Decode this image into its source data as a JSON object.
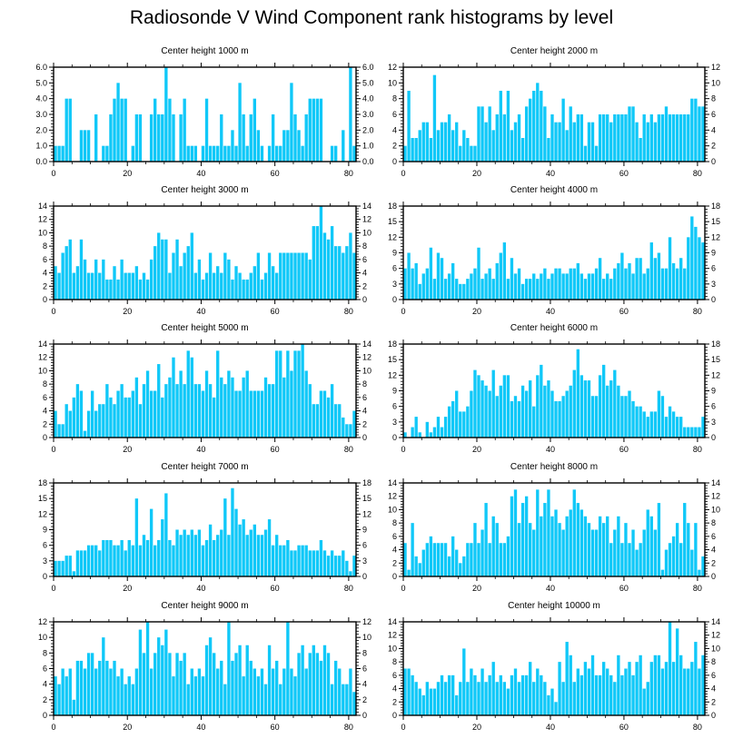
{
  "title": "Radiosonde V Wind Component rank histograms by level",
  "chart_data": [
    {
      "type": "bar",
      "title": "Center height 1000 m",
      "xlim": [
        0,
        82
      ],
      "ylim": [
        0,
        6
      ],
      "yticks": [
        0,
        1,
        2,
        3,
        4,
        5,
        6
      ],
      "ytick_labels": [
        "0.0",
        "1.0",
        "2.0",
        "3.0",
        "4.0",
        "5.0",
        "6.0"
      ],
      "xticks": [
        0,
        20,
        40,
        60,
        80
      ],
      "values": [
        1,
        1,
        1,
        4,
        4,
        0,
        0,
        2,
        2,
        2,
        0,
        3,
        0,
        1,
        1,
        3,
        4,
        5,
        4,
        4,
        0,
        1,
        3,
        3,
        0,
        0,
        3,
        4,
        3,
        3,
        6,
        4,
        3,
        0,
        3,
        4,
        1,
        1,
        1,
        0,
        1,
        4,
        1,
        1,
        1,
        3,
        1,
        1,
        2,
        1,
        5,
        3,
        1,
        3,
        4,
        2,
        1,
        0,
        1,
        3,
        1,
        1,
        2,
        2,
        5,
        3,
        2,
        1,
        3,
        4,
        4,
        4,
        4,
        0,
        0,
        1,
        1,
        0,
        2,
        0,
        6,
        1
      ]
    },
    {
      "type": "bar",
      "title": "Center height 2000 m",
      "xlim": [
        0,
        82
      ],
      "ylim": [
        0,
        12
      ],
      "yticks": [
        0,
        2,
        4,
        6,
        8,
        10,
        12
      ],
      "ytick_labels": [
        "0",
        "2",
        "4",
        "6",
        "8",
        "10",
        "12"
      ],
      "xticks": [
        0,
        20,
        40,
        60,
        80
      ],
      "values": [
        2,
        9,
        3,
        3,
        4,
        5,
        5,
        3,
        11,
        4,
        5,
        5,
        6,
        4,
        5,
        2,
        4,
        3,
        2,
        2,
        7,
        7,
        5,
        7,
        4,
        6,
        9,
        6,
        9,
        4,
        5,
        6,
        3,
        7,
        8,
        9,
        10,
        9,
        7,
        3,
        6,
        5,
        5,
        8,
        4,
        7,
        5,
        6,
        6,
        2,
        5,
        5,
        2,
        6,
        6,
        6,
        5,
        6,
        6,
        6,
        6,
        7,
        7,
        5,
        3,
        6,
        5,
        6,
        5,
        6,
        6,
        7,
        6,
        6,
        6,
        6,
        6,
        6,
        8,
        8,
        7,
        7
      ]
    },
    {
      "type": "bar",
      "title": "Center height 3000 m",
      "xlim": [
        0,
        82
      ],
      "ylim": [
        0,
        14
      ],
      "yticks": [
        0,
        2,
        4,
        6,
        8,
        10,
        12,
        14
      ],
      "ytick_labels": [
        "0",
        "2",
        "4",
        "6",
        "8",
        "10",
        "12",
        "14"
      ],
      "xticks": [
        0,
        20,
        40,
        60,
        80
      ],
      "values": [
        5,
        4,
        7,
        8,
        9,
        4,
        5,
        9,
        6,
        4,
        4,
        6,
        4,
        6,
        3,
        3,
        5,
        3,
        6,
        4,
        4,
        4,
        5,
        3,
        4,
        3,
        6,
        8,
        10,
        9,
        9,
        4,
        7,
        9,
        5,
        7,
        8,
        10,
        4,
        6,
        3,
        4,
        7,
        4,
        5,
        4,
        7,
        6,
        3,
        5,
        4,
        3,
        3,
        4,
        5,
        7,
        3,
        4,
        7,
        5,
        4,
        7,
        7,
        7,
        7,
        7,
        7,
        7,
        7,
        6,
        11,
        11,
        14,
        10,
        9,
        11,
        8,
        8,
        7,
        8,
        10,
        7
      ]
    },
    {
      "type": "bar",
      "title": "Center height 4000 m",
      "xlim": [
        0,
        82
      ],
      "ylim": [
        0,
        18
      ],
      "yticks": [
        0,
        3,
        6,
        9,
        12,
        15,
        18
      ],
      "ytick_labels": [
        "0",
        "3",
        "6",
        "9",
        "12",
        "15",
        "18"
      ],
      "xticks": [
        0,
        20,
        40,
        60,
        80
      ],
      "values": [
        6,
        9,
        6,
        7,
        3,
        5,
        6,
        10,
        4,
        9,
        8,
        4,
        5,
        7,
        4,
        3,
        3,
        4,
        5,
        6,
        10,
        4,
        5,
        6,
        4,
        7,
        9,
        11,
        4,
        8,
        5,
        6,
        3,
        4,
        4,
        5,
        4,
        5,
        6,
        4,
        5,
        6,
        6,
        5,
        5,
        6,
        6,
        7,
        5,
        4,
        5,
        5,
        6,
        8,
        4,
        5,
        4,
        6,
        7,
        9,
        6,
        7,
        5,
        8,
        8,
        5,
        6,
        11,
        8,
        9,
        6,
        6,
        12,
        7,
        6,
        8,
        6,
        12,
        16,
        14,
        12,
        11
      ]
    },
    {
      "type": "bar",
      "title": "Center height 5000 m",
      "xlim": [
        0,
        82
      ],
      "ylim": [
        0,
        14
      ],
      "yticks": [
        0,
        2,
        4,
        6,
        8,
        10,
        12,
        14
      ],
      "ytick_labels": [
        "0",
        "2",
        "4",
        "6",
        "8",
        "10",
        "12",
        "14"
      ],
      "xticks": [
        0,
        20,
        40,
        60,
        80
      ],
      "values": [
        4,
        2,
        2,
        5,
        4,
        6,
        8,
        7,
        1,
        4,
        7,
        4,
        5,
        5,
        8,
        6,
        5,
        7,
        8,
        6,
        6,
        7,
        9,
        5,
        8,
        10,
        7,
        7,
        11,
        6,
        8,
        9,
        12,
        8,
        10,
        8,
        13,
        12,
        8,
        8,
        7,
        10,
        8,
        6,
        13,
        9,
        8,
        10,
        9,
        7,
        7,
        9,
        10,
        7,
        7,
        7,
        7,
        9,
        8,
        8,
        13,
        13,
        9,
        13,
        10,
        13,
        13,
        14,
        10,
        8,
        5,
        5,
        7,
        7,
        6,
        8,
        5,
        5,
        3,
        2,
        2,
        4
      ]
    },
    {
      "type": "bar",
      "title": "Center height 6000 m",
      "xlim": [
        0,
        82
      ],
      "ylim": [
        0,
        18
      ],
      "yticks": [
        0,
        3,
        6,
        9,
        12,
        15,
        18
      ],
      "ytick_labels": [
        "0",
        "3",
        "6",
        "9",
        "12",
        "15",
        "18"
      ],
      "xticks": [
        0,
        20,
        40,
        60,
        80
      ],
      "values": [
        1,
        0,
        2,
        4,
        1,
        0,
        3,
        1,
        2,
        4,
        2,
        4,
        6,
        7,
        9,
        5,
        5,
        6,
        9,
        13,
        12,
        11,
        10,
        9,
        13,
        8,
        10,
        12,
        12,
        7,
        8,
        7,
        10,
        9,
        11,
        6,
        12,
        14,
        10,
        11,
        9,
        7,
        7,
        8,
        9,
        10,
        13,
        17,
        12,
        11,
        11,
        8,
        8,
        12,
        14,
        10,
        11,
        13,
        10,
        8,
        8,
        9,
        7,
        6,
        6,
        5,
        4,
        5,
        5,
        9,
        8,
        4,
        6,
        5,
        4,
        4,
        2,
        2,
        2,
        2,
        2,
        4
      ]
    },
    {
      "type": "bar",
      "title": "Center height 7000 m",
      "xlim": [
        0,
        82
      ],
      "ylim": [
        0,
        18
      ],
      "yticks": [
        0,
        3,
        6,
        9,
        12,
        15,
        18
      ],
      "ytick_labels": [
        "0",
        "3",
        "6",
        "9",
        "12",
        "15",
        "18"
      ],
      "xticks": [
        0,
        20,
        40,
        60,
        80
      ],
      "values": [
        3,
        3,
        3,
        4,
        4,
        1,
        5,
        5,
        5,
        6,
        6,
        6,
        5,
        7,
        7,
        7,
        6,
        6,
        7,
        5,
        7,
        6,
        15,
        6,
        8,
        7,
        13,
        6,
        7,
        11,
        16,
        7,
        6,
        9,
        8,
        9,
        8,
        9,
        8,
        9,
        6,
        7,
        10,
        7,
        8,
        9,
        15,
        8,
        17,
        13,
        10,
        11,
        8,
        9,
        10,
        8,
        8,
        9,
        11,
        6,
        8,
        6,
        6,
        7,
        5,
        5,
        6,
        6,
        6,
        5,
        5,
        5,
        7,
        5,
        4,
        5,
        4,
        4,
        5,
        3,
        1,
        4
      ]
    },
    {
      "type": "bar",
      "title": "Center height 8000 m",
      "xlim": [
        0,
        82
      ],
      "ylim": [
        0,
        14
      ],
      "yticks": [
        0,
        2,
        4,
        6,
        8,
        10,
        12,
        14
      ],
      "ytick_labels": [
        "0",
        "2",
        "4",
        "6",
        "8",
        "10",
        "12",
        "14"
      ],
      "xticks": [
        0,
        20,
        40,
        60,
        80
      ],
      "values": [
        5,
        1,
        8,
        3,
        2,
        4,
        5,
        6,
        5,
        5,
        5,
        5,
        3,
        6,
        4,
        2,
        3,
        5,
        5,
        8,
        5,
        7,
        11,
        5,
        9,
        8,
        5,
        5,
        6,
        12,
        13,
        8,
        11,
        12,
        8,
        7,
        13,
        9,
        11,
        13,
        9,
        10,
        8,
        7,
        9,
        10,
        13,
        11,
        10,
        9,
        8,
        7,
        7,
        9,
        8,
        9,
        5,
        7,
        9,
        5,
        8,
        5,
        7,
        4,
        5,
        7,
        10,
        9,
        7,
        11,
        1,
        4,
        5,
        6,
        8,
        5,
        11,
        8,
        4,
        8,
        1,
        3
      ]
    },
    {
      "type": "bar",
      "title": "Center height 9000 m",
      "xlim": [
        0,
        82
      ],
      "ylim": [
        0,
        12
      ],
      "yticks": [
        0,
        2,
        4,
        6,
        8,
        10,
        12
      ],
      "ytick_labels": [
        "0",
        "2",
        "4",
        "6",
        "8",
        "10",
        "12"
      ],
      "xticks": [
        0,
        20,
        40,
        60,
        80
      ],
      "values": [
        5,
        4,
        6,
        5,
        6,
        2,
        7,
        7,
        6,
        8,
        8,
        6,
        7,
        10,
        7,
        6,
        7,
        5,
        6,
        4,
        5,
        4,
        6,
        11,
        8,
        12,
        6,
        8,
        10,
        9,
        11,
        8,
        5,
        8,
        7,
        8,
        4,
        6,
        5,
        6,
        5,
        9,
        10,
        8,
        6,
        7,
        4,
        12,
        7,
        8,
        9,
        5,
        9,
        7,
        6,
        5,
        6,
        4,
        9,
        6,
        7,
        4,
        6,
        12,
        6,
        5,
        8,
        9,
        6,
        8,
        9,
        8,
        7,
        9,
        8,
        4,
        7,
        6,
        4,
        4,
        6,
        3
      ]
    },
    {
      "type": "bar",
      "title": "Center height 10000 m",
      "xlim": [
        0,
        82
      ],
      "ylim": [
        0,
        14
      ],
      "yticks": [
        0,
        2,
        4,
        6,
        8,
        10,
        12,
        14
      ],
      "ytick_labels": [
        "0",
        "2",
        "4",
        "6",
        "8",
        "10",
        "12",
        "14"
      ],
      "xticks": [
        0,
        20,
        40,
        60,
        80
      ],
      "values": [
        7,
        7,
        6,
        5,
        4,
        3,
        5,
        4,
        4,
        5,
        6,
        5,
        6,
        6,
        3,
        5,
        10,
        5,
        7,
        6,
        5,
        7,
        5,
        6,
        8,
        5,
        6,
        5,
        4,
        6,
        7,
        5,
        6,
        6,
        8,
        5,
        7,
        6,
        5,
        3,
        4,
        2,
        8,
        5,
        11,
        9,
        5,
        7,
        6,
        8,
        7,
        9,
        6,
        6,
        8,
        7,
        6,
        5,
        9,
        6,
        7,
        8,
        6,
        8,
        9,
        4,
        5,
        8,
        9,
        9,
        7,
        8,
        14,
        8,
        13,
        9,
        7,
        7,
        8,
        11,
        7,
        9
      ]
    }
  ]
}
